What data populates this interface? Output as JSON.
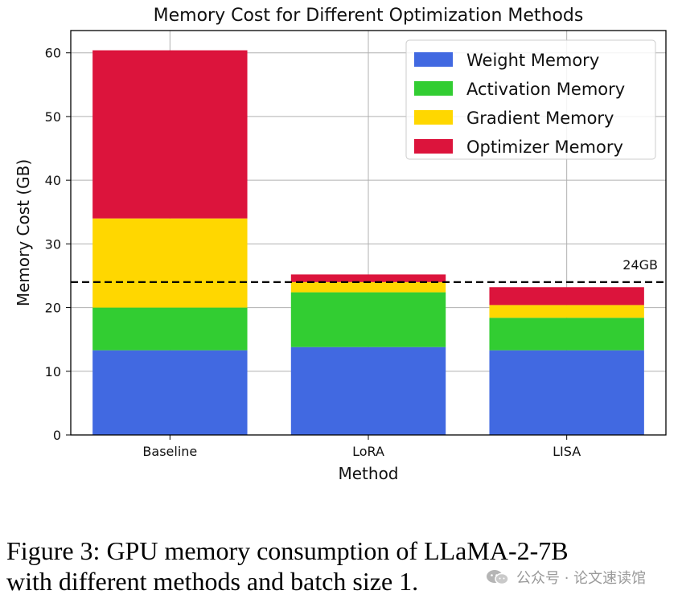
{
  "chart_data": {
    "type": "bar",
    "stacked": true,
    "title": "Memory Cost for Different Optimization Methods",
    "xlabel": "Method",
    "ylabel": "Memory Cost (GB)",
    "categories": [
      "Baseline",
      "LoRA",
      "LISA"
    ],
    "ylim": [
      0,
      63.5
    ],
    "yticks": [
      0,
      10,
      20,
      30,
      40,
      50,
      60
    ],
    "grid": true,
    "legend_position": "top-right",
    "series": [
      {
        "name": "Weight Memory",
        "color": "#4169E1",
        "values": [
          13.3,
          13.8,
          13.3
        ]
      },
      {
        "name": "Activation Memory",
        "color": "#32CD32",
        "values": [
          6.7,
          8.6,
          5.1
        ]
      },
      {
        "name": "Gradient Memory",
        "color": "#FFD700",
        "values": [
          14.0,
          1.6,
          2.0
        ]
      },
      {
        "name": "Optimizer Memory",
        "color": "#DC143C",
        "values": [
          26.4,
          1.2,
          2.8
        ]
      }
    ],
    "reference_line": {
      "value": 24,
      "label": "24GB"
    }
  },
  "caption": {
    "line1": "Figure 3: GPU memory consumption of LLaMA-2-7B",
    "line2": "with different methods and batch size 1."
  },
  "watermark": {
    "text": "公众号 · 论文速读馆"
  }
}
